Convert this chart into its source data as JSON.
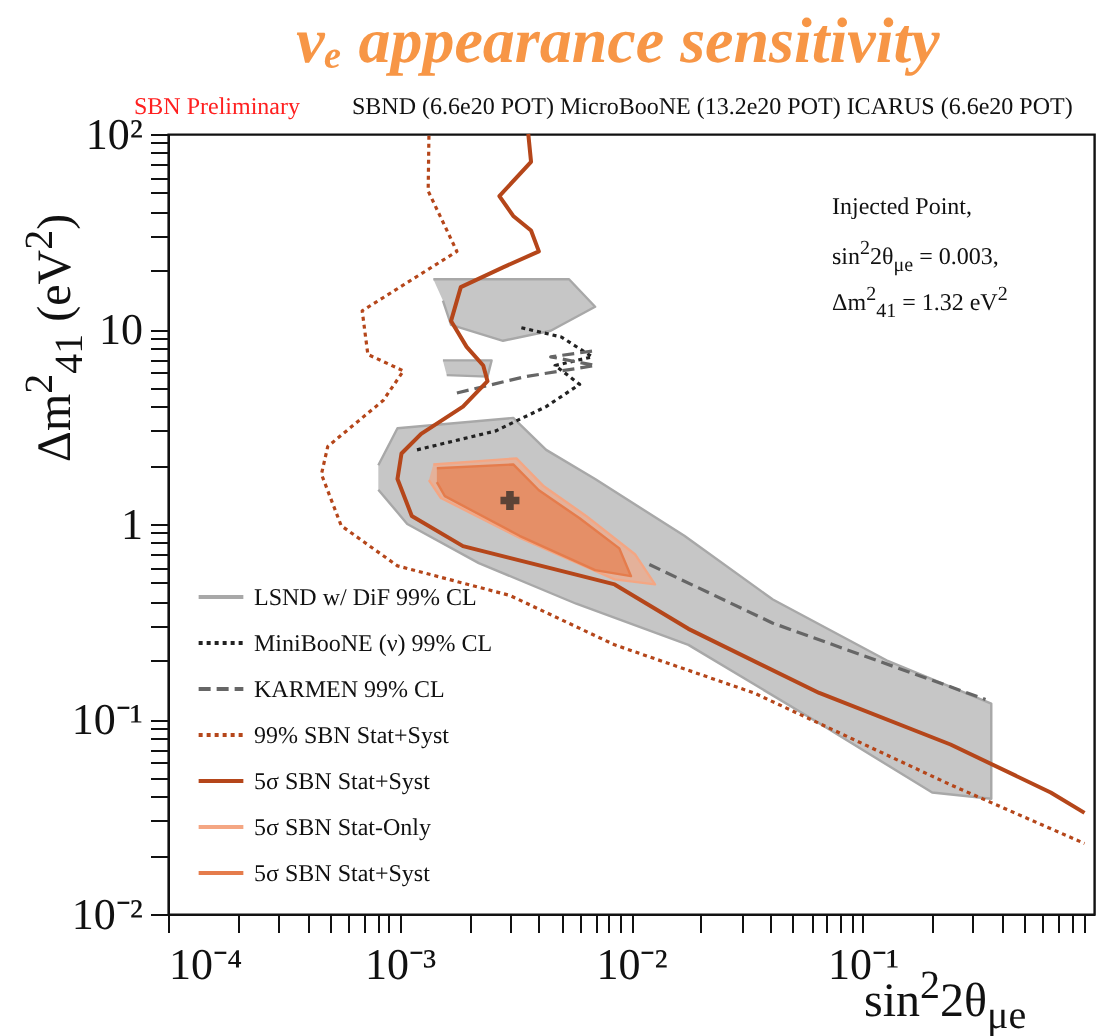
{
  "chart_data": {
    "type": "line",
    "title": "νₑ appearance sensitivity",
    "xlabel": "sin$^{2}$2θ$_{μe}$",
    "ylabel": "Δm$^{2}$$_{41}$ (eV$^{2}$)",
    "annotations": [
      "SBN Preliminary",
      "SBND (6.6e20 POT) MicroBooNE (13.2e20 POT) ICARUS (6.6e20 POT)",
      "Injected Point,",
      "sin$^{2}$2θ$_{μe}$ = 0.003,",
      "Δm$^{2}$$_{41}$ = 1.32 eV$^{2}$"
    ],
    "log": "xy",
    "xlim": [
      0.0001,
      1
    ],
    "ylim": [
      0.01,
      100
    ],
    "legend": "bottom left",
    "xticks": [
      {
        "value": 0.0001,
        "label": "10⁻⁴"
      },
      {
        "value": 0.0002,
        "label": null
      },
      {
        "value": 0.0003,
        "label": null
      },
      {
        "value": 0.0004,
        "label": null
      },
      {
        "value": 0.0005,
        "label": null
      },
      {
        "value": 0.0006,
        "label": null
      },
      {
        "value": 0.0007,
        "label": null
      },
      {
        "value": 0.0008,
        "label": null
      },
      {
        "value": 0.0009,
        "label": null
      },
      {
        "value": 0.001,
        "label": "10⁻³"
      },
      {
        "value": 0.002,
        "label": null
      },
      {
        "value": 0.003,
        "label": null
      },
      {
        "value": 0.004,
        "label": null
      },
      {
        "value": 0.005,
        "label": null
      },
      {
        "value": 0.006,
        "label": null
      },
      {
        "value": 0.007,
        "label": null
      },
      {
        "value": 0.008,
        "label": null
      },
      {
        "value": 0.009,
        "label": null
      },
      {
        "value": 0.01,
        "label": "10⁻²"
      },
      {
        "value": 0.02,
        "label": null
      },
      {
        "value": 0.03,
        "label": null
      },
      {
        "value": 0.04,
        "label": null
      },
      {
        "value": 0.05,
        "label": null
      },
      {
        "value": 0.06,
        "label": null
      },
      {
        "value": 0.07,
        "label": null
      },
      {
        "value": 0.08,
        "label": null
      },
      {
        "value": 0.09,
        "label": null
      },
      {
        "value": 0.1,
        "label": "10⁻¹"
      },
      {
        "value": 0.2,
        "label": null
      },
      {
        "value": 0.3,
        "label": null
      },
      {
        "value": 0.4,
        "label": null
      },
      {
        "value": 0.5,
        "label": null
      },
      {
        "value": 0.6,
        "label": null
      },
      {
        "value": 0.7,
        "label": null
      },
      {
        "value": 0.8,
        "label": null
      },
      {
        "value": 0.9,
        "label": null
      }
    ],
    "yticks": [
      {
        "value": 0.01,
        "label": "10⁻²"
      },
      {
        "value": 0.02,
        "label": null
      },
      {
        "value": 0.03,
        "label": null
      },
      {
        "value": 0.04,
        "label": null
      },
      {
        "value": 0.05,
        "label": null
      },
      {
        "value": 0.06,
        "label": null
      },
      {
        "value": 0.07,
        "label": null
      },
      {
        "value": 0.08,
        "label": null
      },
      {
        "value": 0.09,
        "label": null
      },
      {
        "value": 0.1,
        "label": "10⁻¹"
      },
      {
        "value": 0.2,
        "label": null
      },
      {
        "value": 0.3,
        "label": null
      },
      {
        "value": 0.4,
        "label": null
      },
      {
        "value": 0.5,
        "label": null
      },
      {
        "value": 0.6,
        "label": null
      },
      {
        "value": 0.7,
        "label": null
      },
      {
        "value": 0.8,
        "label": null
      },
      {
        "value": 0.9,
        "label": null
      },
      1,
      {
        "value": 2,
        "label": null
      },
      {
        "value": 3,
        "label": null
      },
      {
        "value": 4,
        "label": null
      },
      {
        "value": 5,
        "label": null
      },
      {
        "value": 6,
        "label": null
      },
      {
        "value": 7,
        "label": null
      },
      {
        "value": 8,
        "label": null
      },
      {
        "value": 9,
        "label": null
      },
      10,
      {
        "value": 20,
        "label": null
      },
      {
        "value": 30,
        "label": null
      },
      {
        "value": 40,
        "label": null
      },
      {
        "value": 50,
        "label": null
      },
      {
        "value": 60,
        "label": null
      },
      {
        "value": 70,
        "label": null
      },
      {
        "value": 80,
        "label": null
      },
      {
        "value": 90,
        "label": null
      },
      {
        "value": 100,
        "label": "10²"
      }
    ],
    "series": [
      {
        "name": "LSND w/ DiF 99% CL",
        "type": "area",
        "color": "#a8a8a8",
        "x": [
          0.00081,
          0.00098,
          0.0031,
          0.0043,
          0.007,
          0.017,
          0.041,
          0.127,
          0.36,
          0.36,
          0.2,
          0.065,
          0.0177,
          0.0058,
          0.0022,
          0.00108,
          0.00081,
          null,
          0.0014,
          0.0054,
          0.007,
          0.0045,
          0.0028,
          0.00167,
          0.00154,
          null,
          0.00154,
          0.0025,
          0.0024,
          0.0016
        ],
        "values": [
          2.0,
          3.1,
          3.5,
          2.4,
          1.7,
          0.87,
          0.41,
          0.2,
          0.12,
          0.039,
          0.042,
          0.095,
          0.24,
          0.39,
          0.63,
          1.0,
          1.5,
          null,
          18,
          18,
          13,
          9.8,
          8.7,
          10.5,
          14,
          null,
          6.9,
          6.9,
          5.7,
          5.8
        ]
      },
      {
        "name": "MiniBooNE (ν) 99% CL",
        "color": "#222222",
        "line_style": "dotted",
        "x": [
          0.00119,
          0.0026,
          0.0043,
          0.006,
          0.0047,
          0.0068,
          0.005,
          0.0033
        ],
        "values": [
          2.4,
          3.0,
          4.0,
          5.2,
          6.5,
          7.2,
          9.1,
          10.2
        ]
      },
      {
        "name": "KARMEN 99% CL",
        "color": "#666666",
        "line_style": "dashed",
        "x": [
          0.00177,
          0.0035,
          0.007,
          0.0045,
          0.0068,
          null,
          0.012,
          0.041,
          0.34
        ],
        "values": [
          4.7,
          5.7,
          6.5,
          7.2,
          7.7,
          null,
          0.62,
          0.31,
          0.126
        ]
      },
      {
        "name": "99% SBN Stat+Syst",
        "color": "#b5461a",
        "line_style": "dotted",
        "x": [
          0.00134,
          0.00133,
          0.00177,
          0.00069,
          0.00073,
          0.00104,
          0.00085,
          0.00049,
          0.00046,
          0.00056,
          0.00098,
          0.003,
          0.0085,
          0.034,
          0.24,
          0.91
        ],
        "values": [
          98,
          51,
          25,
          12.4,
          7.4,
          6.1,
          4.3,
          2.5,
          1.8,
          0.98,
          0.61,
          0.43,
          0.24,
          0.136,
          0.046,
          0.023
        ]
      },
      {
        "name": "5σ SBN Stat+Syst",
        "color": "#b5461a",
        "line_style": "solid",
        "x": [
          0.0036,
          0.0037,
          0.0027,
          0.0031,
          0.0037,
          0.004,
          0.0028,
          0.00184,
          0.00167,
          0.00195,
          0.0023,
          0.0024,
          0.00188,
          0.00124,
          0.00102,
          0.00098,
          0.00113,
          0.00188,
          0.0041,
          0.0085,
          0.0177,
          0.065,
          0.24,
          0.65,
          0.91
        ],
        "values": [
          100,
          72,
          48,
          38,
          32,
          25,
          20.7,
          16.4,
          11,
          8.1,
          6.5,
          5.4,
          4.0,
          2.9,
          2.3,
          1.7,
          1.1,
          0.77,
          0.61,
          0.49,
          0.29,
          0.136,
          0.074,
          0.042,
          0.033
        ]
      },
      {
        "name": "5σ SBN Stat-Only",
        "type": "area",
        "color": "#f4a683",
        "x": [
          0.0014,
          0.0032,
          0.0042,
          0.0064,
          0.0104,
          0.0127,
          0.0085,
          0.0033,
          0.00151,
          0.00134
        ],
        "values": [
          2.02,
          2.17,
          1.56,
          1.1,
          0.7,
          0.49,
          0.52,
          0.85,
          1.36,
          1.68
        ]
      },
      {
        "name": "5σ SBN Stat+Syst",
        "type": "area",
        "color": "#e57c4c",
        "x": [
          0.00145,
          0.0031,
          0.004,
          0.006,
          0.0089,
          0.01,
          0.007,
          0.0033,
          0.00157,
          0.00145
        ],
        "values": [
          1.93,
          2.02,
          1.49,
          1.07,
          0.75,
          0.54,
          0.58,
          0.87,
          1.39,
          1.64
        ]
      },
      {
        "type": "scatter",
        "color": "#222222",
        "marker": "cross",
        "x": [
          0.003
        ],
        "values": [
          1.32
        ]
      }
    ]
  }
}
